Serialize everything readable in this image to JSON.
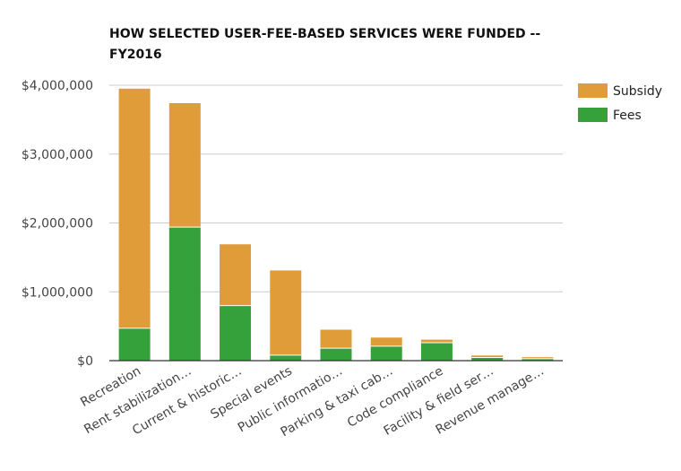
{
  "chart_data": {
    "type": "bar",
    "stacked": true,
    "title": "HOW SELECTED USER-FEE-BASED SERVICES WERE FUNDED -- FY2016",
    "categories": [
      "Recreation",
      "Rent stabilization…",
      "Current & historic…",
      "Special events",
      "Public informatio…",
      "Parking & taxi cab…",
      "Code compliance",
      "Facility & field ser…",
      "Revenue manage…"
    ],
    "series": [
      {
        "name": "Fees",
        "color": "#35a13a",
        "values": [
          470000,
          1940000,
          800000,
          80000,
          180000,
          210000,
          260000,
          45000,
          28000
        ]
      },
      {
        "name": "Subsidy",
        "color": "#e09c38",
        "values": [
          3480000,
          1800000,
          890000,
          1230000,
          270000,
          125000,
          45000,
          30000,
          22000
        ]
      }
    ],
    "ylim": [
      0,
      4000000
    ],
    "yticks": [
      0,
      1000000,
      2000000,
      3000000,
      4000000
    ],
    "ytick_labels": [
      "$0",
      "$1,000,000",
      "$2,000,000",
      "$3,000,000",
      "$4,000,000"
    ],
    "grid": true,
    "legend": {
      "placement": "top-right",
      "entries": [
        "Subsidy",
        "Fees"
      ]
    },
    "xlabel": "",
    "ylabel": ""
  }
}
